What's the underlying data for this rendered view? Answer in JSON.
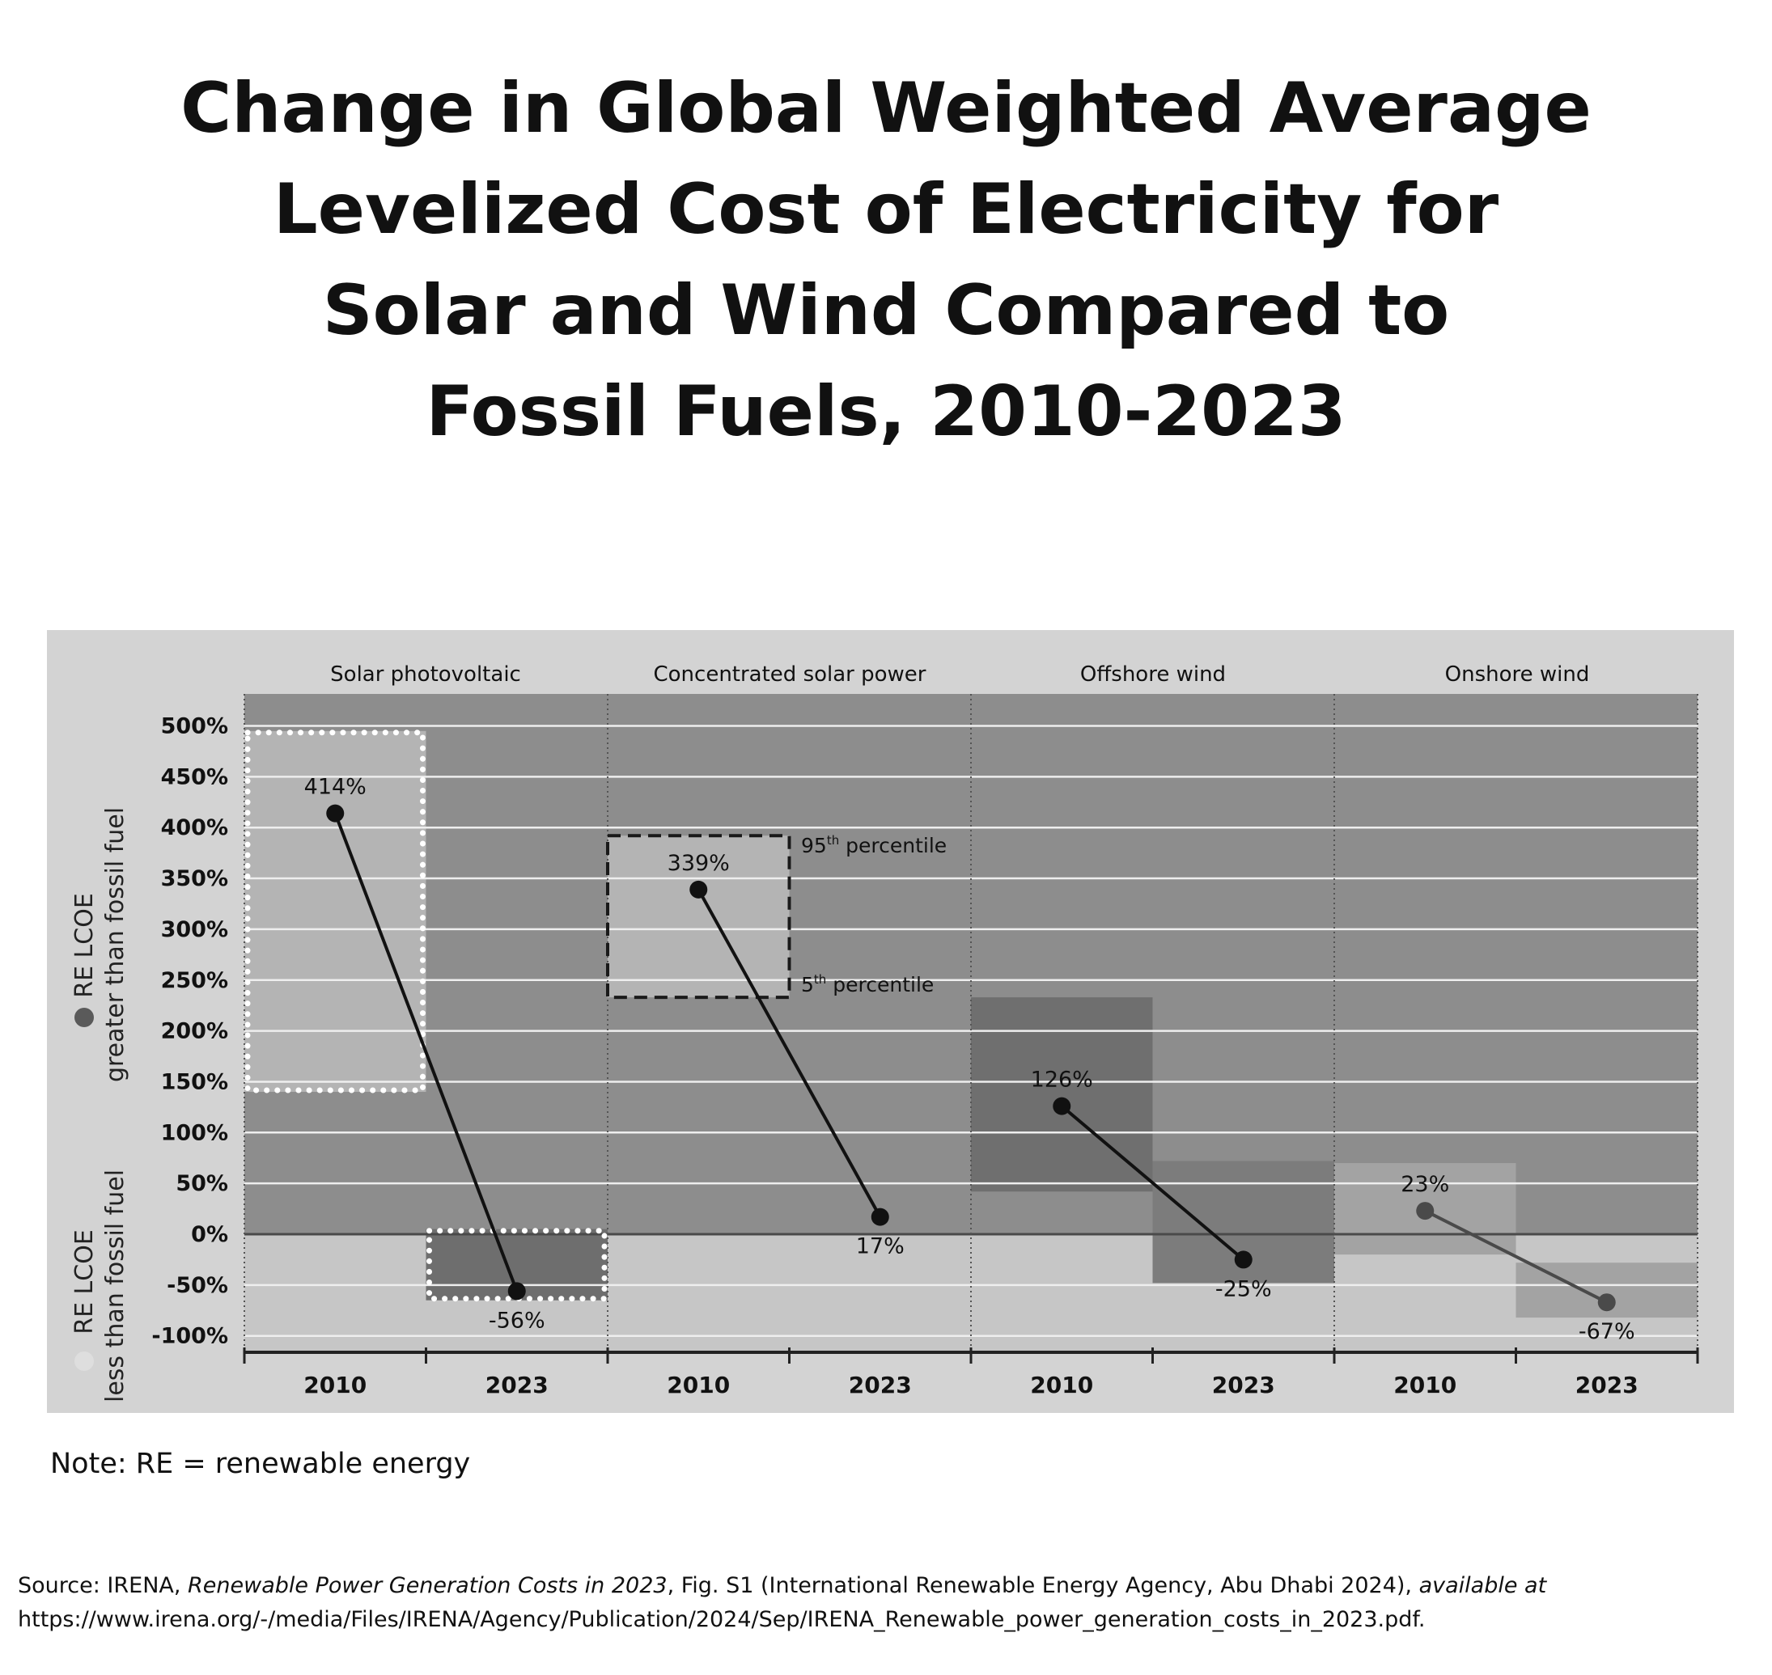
{
  "title_lines": [
    "Change in Global Weighted Average",
    "Levelized Cost of Electricity for",
    "Solar and Wind Compared to",
    "Fossil Fuels, 2010-2023"
  ],
  "note": "Note: RE = renewable energy",
  "source": {
    "prefix": "Source: IRENA, ",
    "italic1": "Renewable Power Generation Costs in 2023",
    "mid": ", Fig. S1 (International Renewable Energy Agency, Abu Dhabi 2024), ",
    "italic2": "available at",
    "url": " https://www.irena.org/-/media/Files/IRENA/Agency/Publication/2024/Sep/IRENA_Renewable_power_generation_costs_in_2023.pdf."
  },
  "chart_data": {
    "type": "line",
    "groups": [
      "Solar photovoltaic",
      "Concentrated solar power",
      "Offshore wind",
      "Onshore wind"
    ],
    "x_tick_labels": [
      "2010",
      "2023",
      "2010",
      "2023",
      "2010",
      "2023",
      "2010",
      "2023"
    ],
    "y_ticks": [
      500,
      450,
      400,
      350,
      300,
      250,
      200,
      150,
      100,
      50,
      0,
      -50,
      -100
    ],
    "y_tick_labels": [
      "500%",
      "450%",
      "400%",
      "350%",
      "300%",
      "250%",
      "200%",
      "150%",
      "100%",
      "50%",
      "0%",
      "-50%",
      "-100%"
    ],
    "ylim": [
      -115,
      530
    ],
    "y_axis_labels": {
      "greater_line1": "RE LCOE",
      "greater_line2": "greater than fossil fuel",
      "less_line1": "RE LCOE",
      "less_line2": "less than fossil fuel"
    },
    "series": [
      {
        "group": "Solar photovoltaic",
        "values": [
          414,
          -56
        ],
        "labels": [
          "414%",
          "-56%"
        ],
        "range_2010": [
          140,
          495
        ],
        "range_2023": [
          -65,
          5
        ],
        "range_style": "dotted-white"
      },
      {
        "group": "Concentrated solar power",
        "values": [
          339,
          17
        ],
        "labels": [
          "339%",
          "17%"
        ],
        "range_2010": [
          233,
          392
        ],
        "range_style": "dashed-black"
      },
      {
        "group": "Offshore wind",
        "values": [
          126,
          -25
        ],
        "labels": [
          "126%",
          "-25%"
        ],
        "range_2010": [
          42,
          233
        ],
        "range_2023": [
          -48,
          72
        ],
        "range_style": "shaded"
      },
      {
        "group": "Onshore wind",
        "values": [
          23,
          -67
        ],
        "labels": [
          "23%",
          "-67%"
        ],
        "range_2010": [
          -20,
          70
        ],
        "range_2023": [
          -82,
          -28
        ],
        "range_style": "shaded"
      }
    ],
    "annotations": {
      "p95": {
        "base": "95",
        "sup": "th",
        "rest": " percentile"
      },
      "p5": {
        "base": "5",
        "sup": "th",
        "rest": " percentile"
      }
    },
    "grid": true
  }
}
